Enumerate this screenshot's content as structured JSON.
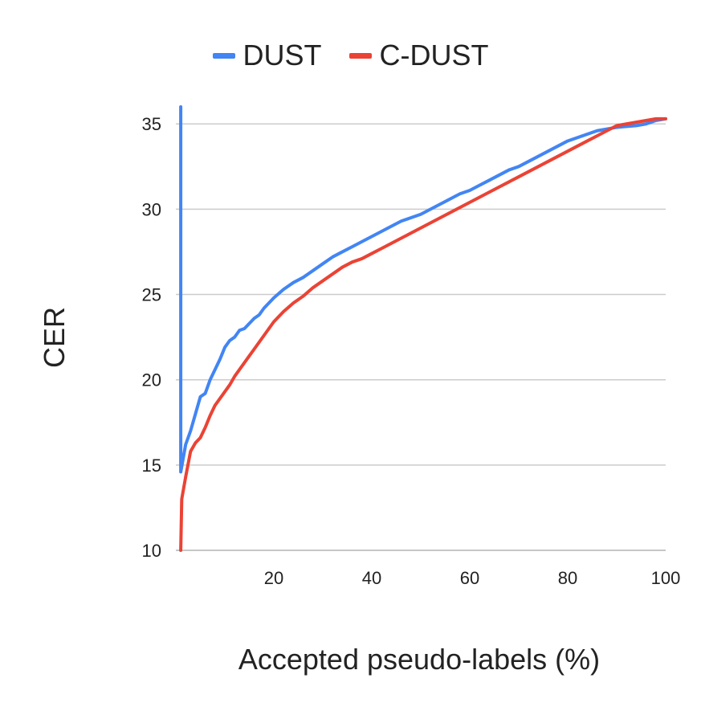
{
  "chart_data": {
    "type": "line",
    "title": "",
    "xlabel": "Accepted pseudo-labels (%)",
    "ylabel": "CER",
    "xlim": [
      0,
      100
    ],
    "ylim": [
      10,
      36
    ],
    "x_ticks": [
      20,
      40,
      60,
      80,
      100
    ],
    "y_ticks": [
      10,
      15,
      20,
      25,
      30,
      35
    ],
    "grid": "horizontal",
    "legend_position": "top-center",
    "series": [
      {
        "name": "DUST",
        "color": "#4285F4",
        "x": [
          1,
          1,
          2,
          3,
          4,
          5,
          6,
          7,
          8,
          9,
          10,
          11,
          12,
          13,
          14,
          15,
          16,
          17,
          18,
          19,
          20,
          22,
          24,
          26,
          28,
          30,
          32,
          34,
          36,
          38,
          40,
          42,
          44,
          46,
          48,
          50,
          52,
          54,
          56,
          58,
          60,
          62,
          64,
          66,
          68,
          70,
          72,
          74,
          76,
          78,
          80,
          82,
          84,
          86,
          88,
          90,
          92,
          94,
          96,
          98,
          100
        ],
        "y": [
          36.0,
          14.6,
          16.2,
          17.0,
          18.0,
          19.0,
          19.2,
          20.0,
          20.6,
          21.2,
          21.9,
          22.3,
          22.5,
          22.9,
          23.0,
          23.3,
          23.6,
          23.8,
          24.2,
          24.5,
          24.8,
          25.3,
          25.7,
          26.0,
          26.4,
          26.8,
          27.2,
          27.5,
          27.8,
          28.1,
          28.4,
          28.7,
          29.0,
          29.3,
          29.5,
          29.7,
          30.0,
          30.3,
          30.6,
          30.9,
          31.1,
          31.4,
          31.7,
          32.0,
          32.3,
          32.5,
          32.8,
          33.1,
          33.4,
          33.7,
          34.0,
          34.2,
          34.4,
          34.6,
          34.7,
          34.8,
          34.85,
          34.9,
          35.0,
          35.2,
          35.3
        ]
      },
      {
        "name": "C-DUST",
        "color": "#EA4335",
        "x": [
          1,
          1.2,
          2,
          3,
          4,
          5,
          6,
          7,
          8,
          9,
          10,
          11,
          12,
          13,
          14,
          15,
          16,
          17,
          18,
          19,
          20,
          22,
          24,
          26,
          28,
          30,
          32,
          34,
          36,
          38,
          40,
          42,
          44,
          46,
          48,
          50,
          52,
          54,
          56,
          58,
          60,
          62,
          64,
          66,
          68,
          70,
          72,
          74,
          76,
          78,
          80,
          82,
          84,
          86,
          88,
          90,
          92,
          94,
          96,
          98,
          100
        ],
        "y": [
          10.0,
          13.0,
          14.3,
          15.8,
          16.3,
          16.6,
          17.2,
          17.9,
          18.5,
          18.9,
          19.3,
          19.7,
          20.2,
          20.6,
          21.0,
          21.4,
          21.8,
          22.2,
          22.6,
          23.0,
          23.4,
          24.0,
          24.5,
          24.9,
          25.4,
          25.8,
          26.2,
          26.6,
          26.9,
          27.1,
          27.4,
          27.7,
          28.0,
          28.3,
          28.6,
          28.9,
          29.2,
          29.5,
          29.8,
          30.1,
          30.4,
          30.7,
          31.0,
          31.3,
          31.6,
          31.9,
          32.2,
          32.5,
          32.8,
          33.1,
          33.4,
          33.7,
          34.0,
          34.3,
          34.6,
          34.9,
          35.0,
          35.1,
          35.2,
          35.3,
          35.3
        ]
      }
    ]
  }
}
